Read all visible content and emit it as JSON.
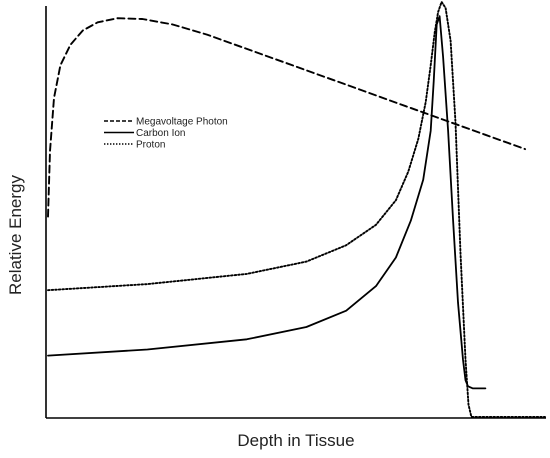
{
  "chart_data": {
    "type": "line",
    "title": "",
    "xlabel": "Depth in Tissue",
    "ylabel": "Relative Energy",
    "xlim": [
      0,
      100
    ],
    "ylim": [
      0,
      100
    ],
    "x_ticks": "none",
    "y_ticks": "none",
    "grid": false,
    "legend": {
      "position": "upper-left (inside plot)"
    },
    "series": [
      {
        "name": "Megavoltage Photon",
        "line_style": "dashed",
        "color": "#000000",
        "x": [
          0,
          0.4,
          1.2,
          2.5,
          4.5,
          7,
          10,
          14,
          19,
          25,
          32,
          40,
          48,
          56,
          64,
          72,
          80,
          88,
          96
        ],
        "y": [
          49,
          65,
          78,
          86,
          91,
          94.5,
          96.5,
          97.5,
          97.3,
          96,
          93.5,
          90,
          86.5,
          83,
          79.5,
          76,
          72.5,
          69,
          65.5
        ]
      },
      {
        "name": "Carbon Ion",
        "line_style": "solid",
        "color": "#000000",
        "x": [
          0,
          20,
          40,
          52,
          60,
          66,
          70,
          73,
          75.5,
          77,
          77.6,
          78.2,
          78.8,
          79.5,
          80.5,
          81.5,
          82.5,
          83.5,
          84,
          84.5,
          85.5,
          87,
          88
        ],
        "y": [
          15,
          16.5,
          19,
          22,
          26,
          32,
          39,
          48,
          58,
          70,
          82,
          96,
          98,
          88,
          70,
          48,
          28,
          14,
          9,
          7.5,
          7,
          7,
          7
        ]
      },
      {
        "name": "Proton",
        "line_style": "dotted",
        "color": "#000000",
        "x": [
          0,
          20,
          40,
          52,
          60,
          66,
          70,
          72.5,
          74.5,
          76,
          77,
          77.8,
          78.5,
          79.2,
          80,
          81,
          82,
          83,
          84,
          84.6,
          85.2,
          87,
          100
        ],
        "y": [
          31,
          32.5,
          35,
          38,
          42,
          47,
          53,
          60,
          68,
          77,
          86,
          94,
          99,
          101.5,
          100,
          92,
          72,
          40,
          14,
          3,
          0,
          0,
          0
        ]
      }
    ]
  }
}
